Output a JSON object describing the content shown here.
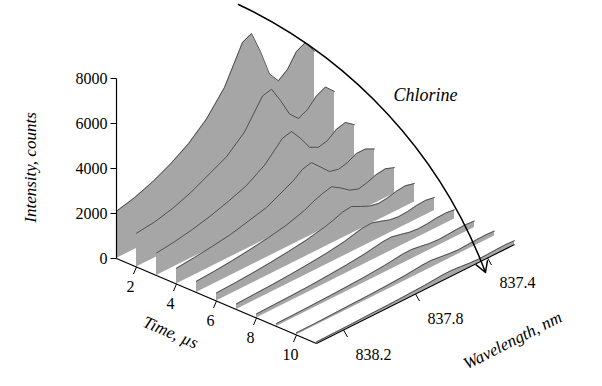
{
  "chart_data": {
    "type": "surface",
    "x_label": "Time, µs",
    "y_label": "Wavelength, nm",
    "z_label": "Intensity, counts",
    "annotation": "Chlorine",
    "color": "#a6a6a6",
    "xlim": [
      1,
      11
    ],
    "xticks": [
      2,
      4,
      6,
      8,
      10
    ],
    "ylim": [
      838.35,
      837.25
    ],
    "yticks": [
      838.2,
      837.8,
      837.4
    ],
    "zlim": [
      0,
      8000
    ],
    "zticks": [
      0,
      2000,
      4000,
      6000,
      8000
    ],
    "x": [
      1,
      2,
      3,
      4,
      5,
      6,
      7,
      8,
      9,
      10,
      11
    ],
    "wavelengths": [
      838.35,
      838.25,
      838.15,
      838.05,
      837.95,
      837.85,
      837.75,
      837.7,
      837.65,
      837.6,
      837.55,
      837.5,
      837.45,
      837.4,
      837.35,
      837.3,
      837.25
    ],
    "intensity": [
      [
        2100,
        2300,
        2600,
        3000,
        3500,
        4200,
        5200,
        6000,
        6800,
        7000,
        6000,
        4800,
        4300,
        4600,
        5200,
        5400,
        4800
      ],
      [
        1500,
        1600,
        1800,
        2100,
        2500,
        2900,
        3600,
        4200,
        4800,
        4900,
        4200,
        3400,
        3000,
        3200,
        3600,
        3800,
        3400
      ],
      [
        1000,
        1100,
        1250,
        1450,
        1700,
        2000,
        2500,
        2900,
        3300,
        3400,
        2900,
        2300,
        2100,
        2200,
        2500,
        2600,
        2300
      ],
      [
        700,
        780,
        880,
        1000,
        1200,
        1400,
        1800,
        2000,
        2300,
        2400,
        2000,
        1600,
        1500,
        1600,
        1800,
        1800,
        1600
      ],
      [
        500,
        550,
        620,
        720,
        840,
        1000,
        1250,
        1450,
        1600,
        1700,
        1450,
        1150,
        1000,
        1100,
        1250,
        1300,
        1150
      ],
      [
        360,
        390,
        440,
        510,
        600,
        710,
        880,
        1000,
        1150,
        1200,
        1000,
        820,
        730,
        780,
        880,
        920,
        820
      ],
      [
        250,
        280,
        310,
        360,
        420,
        500,
        620,
        720,
        820,
        840,
        720,
        580,
        520,
        550,
        620,
        650,
        580
      ],
      [
        180,
        200,
        220,
        250,
        300,
        360,
        440,
        510,
        580,
        600,
        510,
        410,
        370,
        390,
        440,
        460,
        410
      ],
      [
        130,
        140,
        160,
        180,
        210,
        250,
        310,
        360,
        410,
        420,
        360,
        290,
        260,
        280,
        310,
        320,
        290
      ],
      [
        100,
        100,
        120,
        140,
        160,
        190,
        230,
        270,
        310,
        320,
        270,
        220,
        190,
        210,
        230,
        240,
        220
      ],
      [
        70,
        80,
        90,
        110,
        120,
        150,
        180,
        210,
        240,
        250,
        210,
        170,
        150,
        160,
        180,
        190,
        170
      ]
    ]
  }
}
